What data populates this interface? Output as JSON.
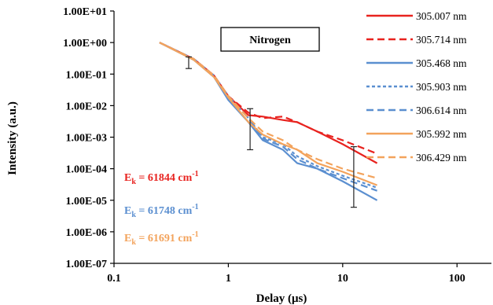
{
  "chart_data": {
    "type": "line",
    "title": "Nitrogen",
    "xlabel": "Delay (μs)",
    "ylabel": "Intensity (a.u.)",
    "xscale": "log",
    "yscale": "log",
    "xlim": [
      0.1,
      200
    ],
    "ylim": [
      1e-07,
      10
    ],
    "x_ticks": [
      {
        "value": 0.1,
        "label": "0.1"
      },
      {
        "value": 1,
        "label": "1"
      },
      {
        "value": 10,
        "label": "10"
      },
      {
        "value": 100,
        "label": "100"
      }
    ],
    "y_ticks": [
      {
        "value": 10,
        "label": "1.00E+01"
      },
      {
        "value": 1,
        "label": "1.00E+00"
      },
      {
        "value": 0.1,
        "label": "1.00E-01"
      },
      {
        "value": 0.01,
        "label": "1.00E-02"
      },
      {
        "value": 0.001,
        "label": "1.00E-03"
      },
      {
        "value": 0.0001,
        "label": "1.00E-04"
      },
      {
        "value": 1e-05,
        "label": "1.00E-05"
      },
      {
        "value": 1e-06,
        "label": "1.00E-06"
      },
      {
        "value": 1e-07,
        "label": "1.00E-07"
      }
    ],
    "grid": false,
    "legend_position": "right",
    "series": [
      {
        "name": "305.007 nm",
        "color": "#e8231f",
        "dash": "solid",
        "x": [
          0.25,
          0.5,
          0.75,
          1.0,
          1.5,
          2.0,
          3.0,
          4.0,
          6.0,
          10.0,
          20.0
        ],
        "y": [
          1.0,
          0.3,
          0.09,
          0.02,
          0.005,
          0.0045,
          0.0035,
          0.003,
          0.0015,
          0.0006,
          0.00015
        ]
      },
      {
        "name": "305.714 nm",
        "color": "#e8231f",
        "dash": "dashed",
        "x": [
          0.25,
          0.5,
          0.75,
          1.0,
          1.5,
          2.0,
          3.0,
          4.0,
          6.0,
          10.0,
          20.0
        ],
        "y": [
          1.0,
          0.3,
          0.09,
          0.02,
          0.006,
          0.004,
          0.0045,
          0.003,
          0.0015,
          0.0008,
          0.0003
        ]
      },
      {
        "name": "305.468 nm",
        "color": "#5b8fd0",
        "dash": "solid",
        "x": [
          0.25,
          0.5,
          0.75,
          1.0,
          1.5,
          2.0,
          3.0,
          4.0,
          6.0,
          10.0,
          20.0
        ],
        "y": [
          1.0,
          0.28,
          0.08,
          0.015,
          0.003,
          0.0008,
          0.0004,
          0.00015,
          0.0001,
          4e-05,
          1e-05
        ]
      },
      {
        "name": "305.903 nm",
        "color": "#5b8fd0",
        "dash": "dotted",
        "x": [
          0.25,
          0.5,
          0.75,
          1.0,
          1.5,
          2.0,
          3.0,
          4.0,
          6.0,
          10.0,
          20.0
        ],
        "y": [
          1.0,
          0.3,
          0.09,
          0.02,
          0.004,
          0.001,
          0.0006,
          0.00025,
          0.00012,
          6e-05,
          2.5e-05
        ]
      },
      {
        "name": "306.614 nm",
        "color": "#5b8fd0",
        "dash": "dashed",
        "x": [
          0.25,
          0.5,
          0.75,
          1.0,
          1.5,
          2.0,
          3.0,
          4.0,
          6.0,
          10.0,
          20.0
        ],
        "y": [
          1.0,
          0.3,
          0.08,
          0.02,
          0.004,
          0.0009,
          0.0005,
          0.0002,
          0.0001,
          5e-05,
          2e-05
        ]
      },
      {
        "name": "305.992 nm",
        "color": "#f3a35c",
        "dash": "solid",
        "x": [
          0.25,
          0.5,
          0.75,
          1.0,
          1.5,
          2.0,
          3.0,
          4.0,
          6.0,
          10.0,
          20.0
        ],
        "y": [
          1.0,
          0.28,
          0.08,
          0.018,
          0.003,
          0.0012,
          0.0006,
          0.0004,
          0.00015,
          8e-05,
          3e-05
        ]
      },
      {
        "name": "306.429 nm",
        "color": "#f3a35c",
        "dash": "dashed",
        "x": [
          0.25,
          0.5,
          0.75,
          1.0,
          1.5,
          2.0,
          3.0,
          4.0,
          6.0,
          10.0,
          20.0
        ],
        "y": [
          1.0,
          0.3,
          0.09,
          0.02,
          0.004,
          0.0015,
          0.0008,
          0.0004,
          0.0002,
          0.0001,
          5e-05
        ]
      }
    ],
    "error_bars": [
      {
        "x": 0.45,
        "y": 0.25,
        "low": 0.15,
        "high": 0.35
      },
      {
        "x": 1.55,
        "y": 0.003,
        "low": 0.0004,
        "high": 0.008
      },
      {
        "x": 12.5,
        "y": 0.0001,
        "low": 6e-06,
        "high": 0.0005
      }
    ],
    "annotations": [
      {
        "text": "E",
        "sub": "k",
        "rest": " = 61844 cm",
        "sup": "-1",
        "color": "#e8231f"
      },
      {
        "text": "E",
        "sub": "k",
        "rest": " = 61748 cm",
        "sup": "-1",
        "color": "#5b8fd0"
      },
      {
        "text": "E",
        "sub": "k",
        "rest": " = 61691 cm",
        "sup": "-1",
        "color": "#f3a35c"
      }
    ]
  }
}
